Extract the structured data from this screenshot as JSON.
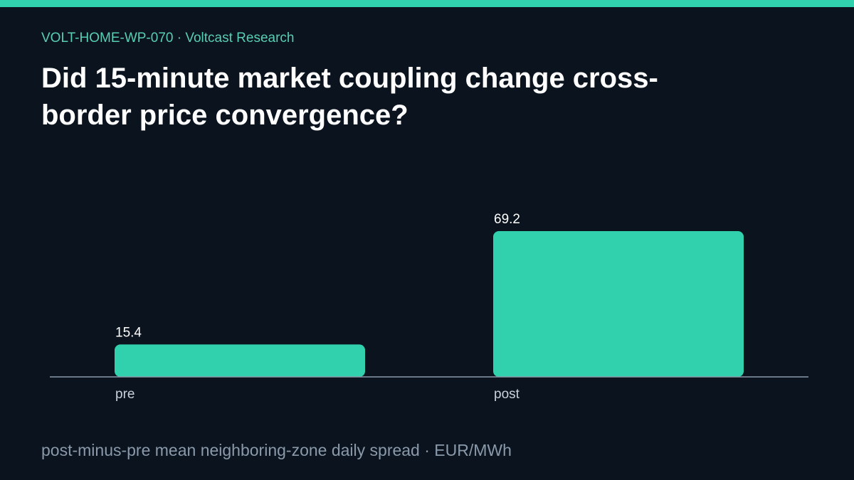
{
  "header": {
    "kicker": "VOLT-HOME-WP-070 · Voltcast Research",
    "title": "Did 15-minute market coupling change cross-border price convergence?"
  },
  "footer": {
    "note": "post-minus-pre mean neighboring-zone daily spread · EUR/MWh"
  },
  "colors": {
    "accent": "#31d1ad",
    "background": "#0a131e",
    "axis": "#8a9aaa"
  },
  "chart_data": {
    "type": "bar",
    "categories": [
      "pre",
      "post"
    ],
    "values": [
      15.4,
      69.2
    ],
    "data_labels": [
      "15.4",
      "69.2"
    ],
    "ylim": [
      0,
      69.2
    ],
    "grid": false,
    "legend": "none"
  }
}
